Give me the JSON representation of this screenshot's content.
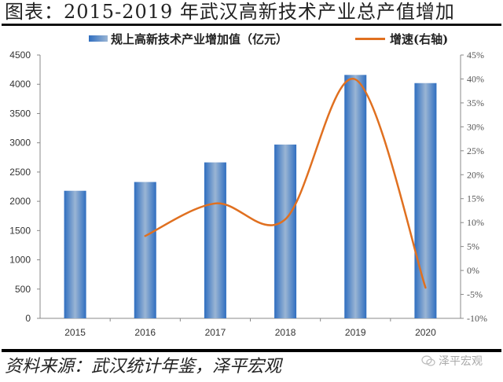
{
  "header": {
    "title": "图表：2015-2019 年武汉高新技术产业总产值增加"
  },
  "legend": {
    "bar_label": "规上高新技术产业增加值（亿元）",
    "line_label": "增速(右轴)"
  },
  "footer": {
    "source": "资料来源：武汉统计年鉴，泽平宏观",
    "watermark": "泽平宏观"
  },
  "colors": {
    "bar_dark": "#2f6ec0",
    "bar_light": "#9ab5d4",
    "line": "#e07020",
    "axis": "#888888"
  },
  "chart_data": {
    "type": "bar+line",
    "title": "图表：2015-2019 年武汉高新技术产业总产值增加",
    "categories": [
      "2015",
      "2016",
      "2017",
      "2018",
      "2019",
      "2020"
    ],
    "series": [
      {
        "name": "规上高新技术产业增加值（亿元）",
        "type": "bar",
        "axis": "left",
        "values": [
          2180,
          2330,
          2665,
          2970,
          4160,
          4020
        ]
      },
      {
        "name": "增速(右轴)",
        "type": "line",
        "axis": "right",
        "smooth": true,
        "values": [
          null,
          7.2,
          14.0,
          10.7,
          39.9,
          -3.6
        ]
      }
    ],
    "left_axis": {
      "ylim": [
        0,
        4500
      ],
      "ticks": [
        "0",
        "500",
        "1000",
        "1500",
        "2000",
        "2500",
        "3000",
        "3500",
        "4000",
        "4500"
      ]
    },
    "right_axis": {
      "ylim": [
        -10,
        45
      ],
      "ticks": [
        "-10%",
        "-5%",
        "0%",
        "5%",
        "10%",
        "15%",
        "20%",
        "25%",
        "30%",
        "35%",
        "40%",
        "45%"
      ]
    },
    "xlabel": "",
    "ylabel": "",
    "grid": false,
    "legend_position": "top"
  }
}
